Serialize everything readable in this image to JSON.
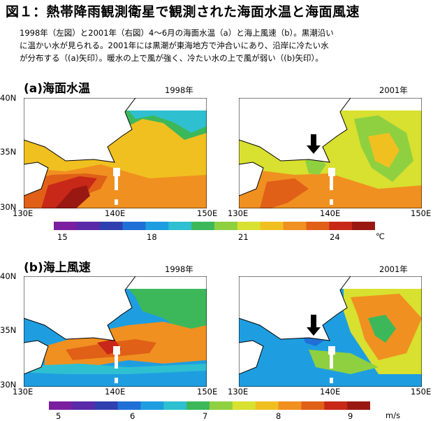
{
  "title": "図１：熱帯降雨観測衛星で観測された海面水温と海面風速",
  "caption": [
    "1998年（左図）と2001年（右図）4〜6月の海面水温（a）と海上風速（b）。黒潮沿い",
    "に温かい水が見られる。2001年には黒潮が東海地方で沖合いにあり、沿岸に冷たい水",
    "が分布する（(a)矢印）。暖水の上で風が強く、冷たい水の上で風が弱い（(b)矢印）。"
  ],
  "sections": [
    {
      "label": "(a)海面水温",
      "years": [
        "1998年",
        "2001年"
      ],
      "lat_ticks": [
        "40N",
        "35N",
        "30N"
      ],
      "lon_ticks": [
        "130E",
        "140E",
        "150E"
      ],
      "colorbar": {
        "ticks": [
          "15",
          "18",
          "21",
          "24"
        ],
        "unit": "℃"
      }
    },
    {
      "label": "(b)海上風速",
      "years": [
        "1998年",
        "2001年"
      ],
      "lat_ticks": [
        "40N",
        "35N",
        "30N"
      ],
      "lon_ticks": [
        "130E",
        "140E",
        "150E"
      ],
      "colorbar": {
        "ticks": [
          "5",
          "6",
          "7",
          "8",
          "9"
        ],
        "unit": "m/s"
      }
    }
  ],
  "colors": {
    "scale": [
      "#7a1fa0",
      "#5a2aa8",
      "#2f3fb0",
      "#1f6fd6",
      "#1e9ee0",
      "#2ec0d0",
      "#3cb85a",
      "#8fd040",
      "#d8e030",
      "#f0c020",
      "#f09020",
      "#e06018",
      "#c82818",
      "#9a1812"
    ]
  }
}
